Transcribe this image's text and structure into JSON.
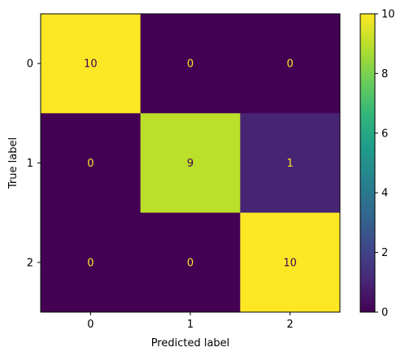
{
  "chart_data": {
    "type": "heatmap",
    "title": "",
    "xlabel": "Predicted label",
    "ylabel": "True label",
    "x_categories": [
      "0",
      "1",
      "2"
    ],
    "y_categories": [
      "0",
      "1",
      "2"
    ],
    "values": [
      [
        10,
        0,
        0
      ],
      [
        0,
        9,
        1
      ],
      [
        0,
        0,
        10
      ]
    ],
    "colormap": "viridis",
    "colorbar": {
      "range": [
        0,
        10
      ],
      "ticks": [
        "0",
        "2",
        "4",
        "6",
        "8",
        "10"
      ]
    },
    "text_color_on_dark": "#fde725",
    "text_color_on_light": "#440154",
    "grid": false
  }
}
